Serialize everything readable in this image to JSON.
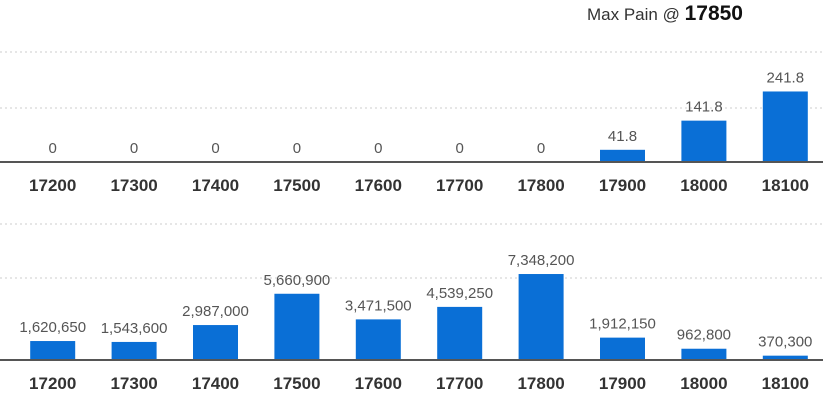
{
  "header": {
    "label": "Max Pain @",
    "value": "17850"
  },
  "colors": {
    "bar": "#0a6fd6",
    "baseline": "#555555",
    "grid": "#cccccc",
    "data_label": "#555555",
    "tick_label": "#333333"
  },
  "chart_data": [
    {
      "type": "bar",
      "categories": [
        "17200",
        "17300",
        "17400",
        "17500",
        "17600",
        "17700",
        "17800",
        "17900",
        "18000",
        "18100"
      ],
      "values": [
        0,
        0,
        0,
        0,
        0,
        0,
        0,
        41.8,
        141.8,
        241.8
      ],
      "value_labels": [
        "0",
        "0",
        "0",
        "0",
        "0",
        "0",
        "0",
        "41.8",
        "141.8",
        "241.8"
      ],
      "title": "",
      "xlabel": "",
      "ylabel": "",
      "ylim": [
        0,
        480
      ],
      "grid": true
    },
    {
      "type": "bar",
      "categories": [
        "17200",
        "17300",
        "17400",
        "17500",
        "17600",
        "17700",
        "17800",
        "17900",
        "18000",
        "18100"
      ],
      "values": [
        1620650,
        1543600,
        2987000,
        5660900,
        3471500,
        4539250,
        7348200,
        1912150,
        962800,
        370300
      ],
      "value_labels": [
        "1,620,650",
        "1,543,600",
        "2,987,000",
        "5,660,900",
        "3,471,500",
        "4,539,250",
        "7,348,200",
        "1,912,150",
        "962,800",
        "370,300"
      ],
      "title": "",
      "xlabel": "",
      "ylabel": "",
      "ylim": [
        0,
        14700000
      ],
      "grid": true
    }
  ]
}
